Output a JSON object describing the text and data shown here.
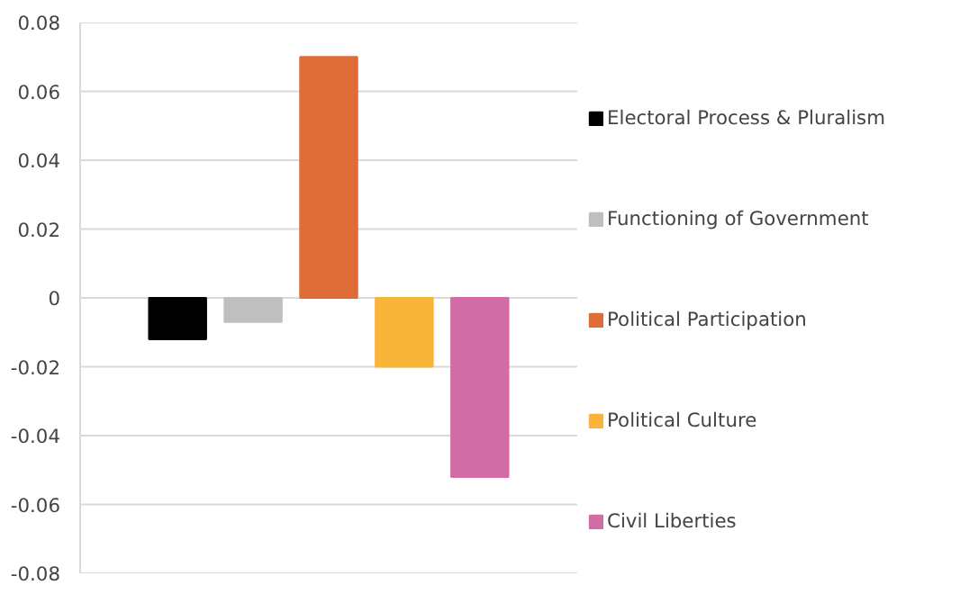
{
  "chart_data": {
    "type": "bar",
    "categories": [
      null
    ],
    "ylim": [
      -0.08,
      0.08
    ],
    "yticks": [
      {
        "value": -0.08,
        "label": "-0.08"
      },
      {
        "value": -0.06,
        "label": "-0.06"
      },
      {
        "value": -0.04,
        "label": "-0.04"
      },
      {
        "value": -0.02,
        "label": "-0.02"
      },
      {
        "value": 0,
        "label": "0"
      },
      {
        "value": 0.02,
        "label": "0.02"
      },
      {
        "value": 0.04,
        "label": "0.04"
      },
      {
        "value": 0.06,
        "label": "0.06"
      },
      {
        "value": 0.08,
        "label": "0.08"
      }
    ],
    "grid": "y",
    "legend": "right",
    "series": [
      {
        "name": "Electoral Process & Pluralism",
        "color": "#000000",
        "values": [
          -0.012
        ]
      },
      {
        "name": "Functioning of Government",
        "color": "#bfbfbf",
        "values": [
          -0.007
        ]
      },
      {
        "name": "Political Participation",
        "color": "#e06c37",
        "values": [
          0.07
        ]
      },
      {
        "name": "Political Culture",
        "color": "#f9b43a",
        "values": [
          -0.02
        ]
      },
      {
        "name": "Civil Liberties",
        "color": "#d16ca4",
        "values": [
          -0.052
        ]
      }
    ]
  }
}
